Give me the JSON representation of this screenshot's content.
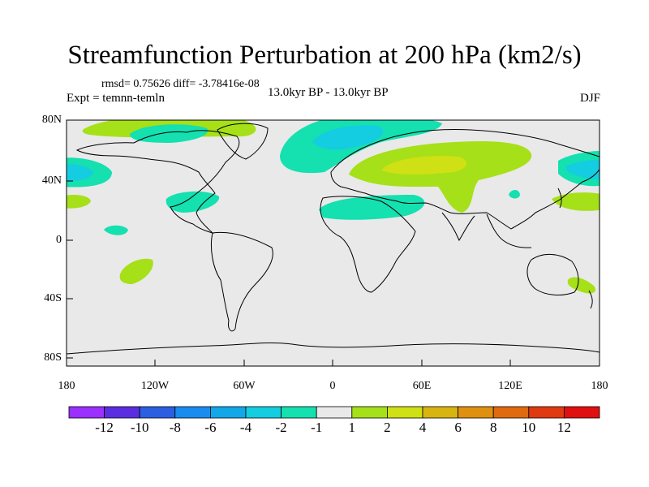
{
  "title": "Streamfunction Perturbation at 200 hPa (km2/s)",
  "stats": "rmsd= 0.75626 diff= -3.78416e-08",
  "period": "13.0kyr BP - 13.0kyr BP",
  "experiment": "Expt = temnn-temln",
  "season": "DJF",
  "axes": {
    "lat_ticks": [
      "80N",
      "40N",
      "0",
      "40S",
      "80S"
    ],
    "lon_ticks": [
      "180",
      "120W",
      "60W",
      "0",
      "60E",
      "120E",
      "180"
    ]
  },
  "colorbar": {
    "labels": [
      "-12",
      "-10",
      "-8",
      "-6",
      "-4",
      "-2",
      "-1",
      "1",
      "2",
      "4",
      "6",
      "8",
      "10",
      "12"
    ],
    "colors": [
      "#9b30ff",
      "#5a2ee0",
      "#2b5fe0",
      "#1a8cf0",
      "#12a8e8",
      "#14cde0",
      "#14e0b0",
      "#e9e9e9",
      "#a6e018",
      "#cfe014",
      "#d8b410",
      "#e09010",
      "#e06a10",
      "#e03a10",
      "#e01010"
    ]
  },
  "colors": {
    "background": "#e9e9e9",
    "coast": "#000000"
  }
}
